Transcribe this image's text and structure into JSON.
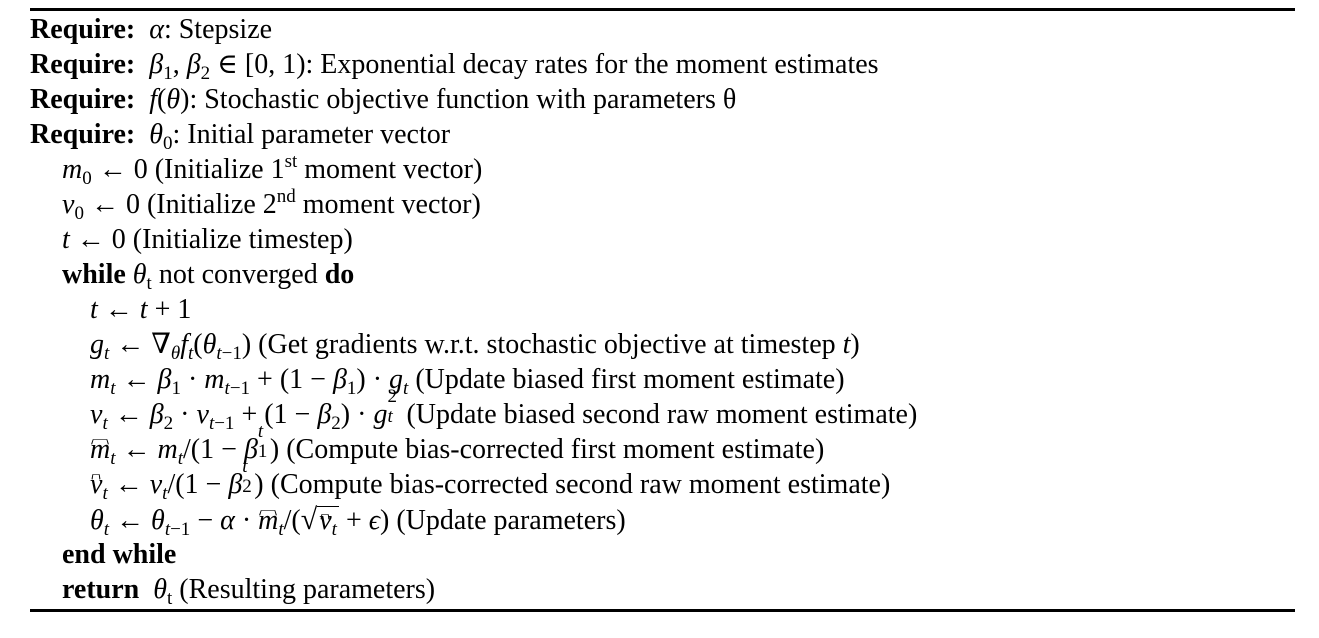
{
  "require_label": "Require:",
  "requires": [
    {
      "math_sym": "α",
      "text": ": Stepsize"
    },
    {
      "math_sym": "β₁, β₂ ∈ [0, 1)",
      "text": ": Exponential decay rates for the moment estimates"
    },
    {
      "math_sym": "f(θ)",
      "text": ": Stochastic objective function with parameters θ"
    },
    {
      "math_sym": "θ₀",
      "text": ": Initial parameter vector"
    }
  ],
  "init": [
    {
      "text_a": "(Initialize 1",
      "ordinal": "st",
      "text_b": " moment vector)"
    },
    {
      "text_a": "(Initialize 2",
      "ordinal": "nd",
      "text_b": " moment vector)"
    },
    {
      "text": "(Initialize timestep)"
    }
  ],
  "while_kw": "while",
  "while_cond": "not converged",
  "do_kw": "do",
  "loop_comments": [
    "(Get gradients w.r.t. stochastic objective at timestep",
    "(Update biased first moment estimate)",
    "(Update biased second raw moment estimate)",
    "(Compute bias-corrected first moment estimate)",
    "(Compute bias-corrected second raw moment estimate)",
    "(Update parameters)"
  ],
  "end_while_kw": "end while",
  "return_kw": "return",
  "return_comment": "(Resulting parameters)"
}
